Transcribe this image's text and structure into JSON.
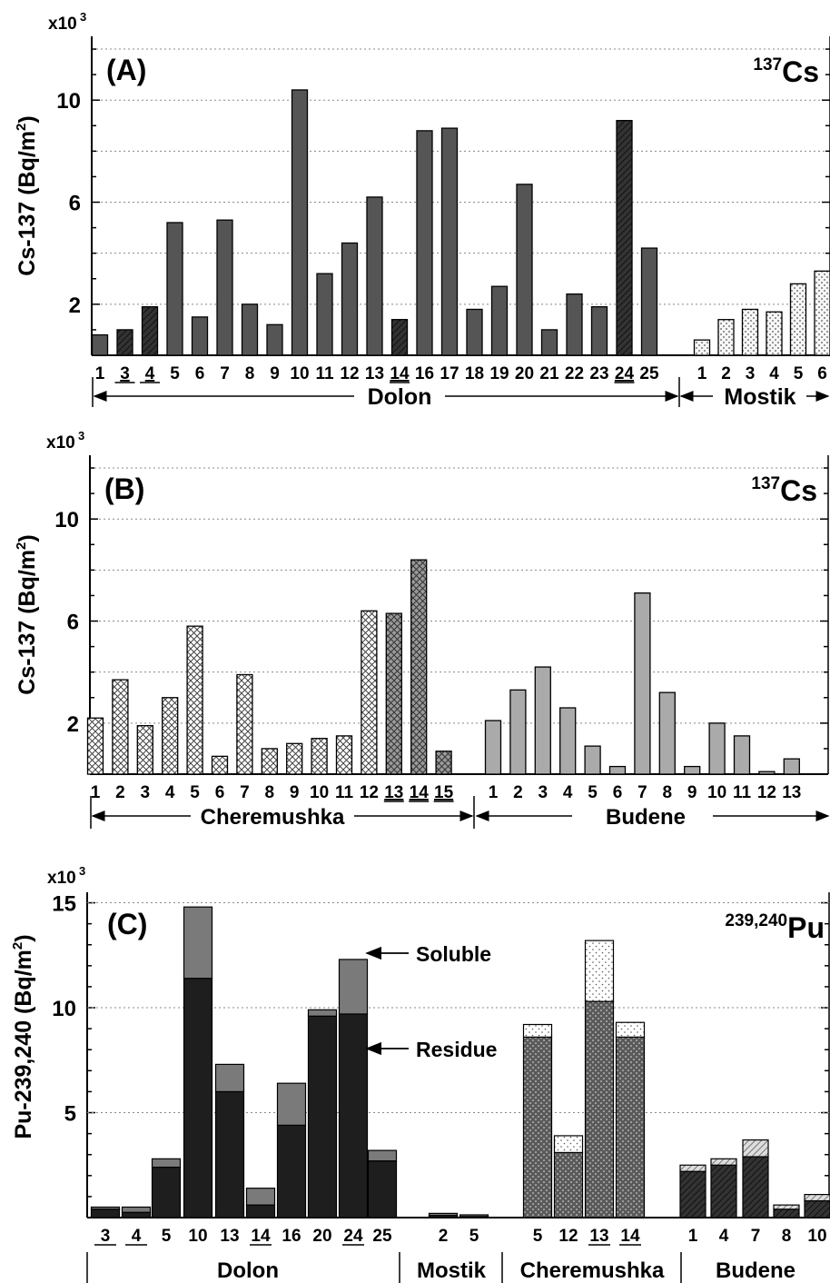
{
  "colors": {
    "dolon": "#555555",
    "dolon_hatched": "#333333",
    "mostik": "#f2f2f2",
    "cheremushka": "#ffffff",
    "cheremushka_dark": "#999999",
    "budene": "#aaaaaa",
    "residue_dark": "#1e1e1e",
    "soluble_gray": "#7a7a7a",
    "residue_dotted": "#5a5a5a"
  },
  "chart_data": [
    {
      "panel": "(A)",
      "type": "bar",
      "isotope_mass": "137",
      "isotope_symbol": "Cs",
      "ylabel": "Cs-137 (Bq/m",
      "ylabel_sup": "2",
      "ylabel_end": ")",
      "multiplier": "x10",
      "multiplier_exp": "3",
      "ylim": [
        0,
        12.5
      ],
      "yticks": [
        2,
        6,
        10
      ],
      "grid": "dotted horizontal",
      "groups": [
        {
          "name": "Dolon",
          "color_key": "dolon",
          "categories": [
            "1",
            "3",
            "4",
            "5",
            "6",
            "7",
            "8",
            "9",
            "10",
            "11",
            "12",
            "13",
            "14",
            "16",
            "17",
            "18",
            "19",
            "20",
            "21",
            "22",
            "23",
            "24",
            "25"
          ],
          "underlined": [
            "3",
            "4",
            "14",
            "24"
          ],
          "values": [
            0.8,
            1.0,
            1.9,
            5.2,
            1.5,
            5.3,
            2.0,
            1.2,
            10.4,
            3.2,
            4.4,
            6.2,
            1.4,
            8.8,
            8.9,
            1.8,
            2.7,
            6.7,
            1.0,
            2.4,
            1.9,
            9.2,
            4.2
          ]
        },
        {
          "name": "Mostik",
          "color_key": "mostik",
          "categories": [
            "1",
            "2",
            "3",
            "4",
            "5",
            "6"
          ],
          "underlined": [],
          "values": [
            0.6,
            1.4,
            1.8,
            1.7,
            2.8,
            3.3
          ]
        }
      ]
    },
    {
      "panel": "(B)",
      "type": "bar",
      "isotope_mass": "137",
      "isotope_symbol": "Cs",
      "ylabel": "Cs-137 (Bq/m",
      "ylabel_sup": "2",
      "ylabel_end": ")",
      "multiplier": "x10",
      "multiplier_exp": "3",
      "ylim": [
        0,
        12.5
      ],
      "yticks": [
        2,
        6,
        10
      ],
      "grid": "dotted horizontal",
      "groups": [
        {
          "name": "Cheremushka",
          "color_key": "cheremushka",
          "categories": [
            "1",
            "2",
            "3",
            "4",
            "5",
            "6",
            "7",
            "8",
            "9",
            "10",
            "11",
            "12",
            "13",
            "14",
            "15"
          ],
          "underlined": [
            "13",
            "14",
            "15"
          ],
          "values": [
            2.2,
            3.7,
            1.9,
            3.0,
            5.8,
            0.7,
            3.9,
            1.0,
            1.2,
            1.4,
            1.5,
            6.4,
            6.3,
            8.4,
            0.9
          ]
        },
        {
          "name": "Budene",
          "color_key": "budene",
          "categories": [
            "1",
            "2",
            "3",
            "4",
            "5",
            "6",
            "7",
            "8",
            "9",
            "10",
            "11",
            "12",
            "13"
          ],
          "underlined": [],
          "values": [
            2.1,
            3.3,
            4.2,
            2.6,
            1.1,
            0.3,
            7.1,
            3.2,
            0.3,
            2.0,
            1.5,
            0.1,
            0.6
          ]
        }
      ]
    },
    {
      "panel": "(C)",
      "type": "stacked bar",
      "isotope_mass": "239,240",
      "isotope_symbol": "Pu",
      "ylabel": "Pu-239,240 (Bq/m",
      "ylabel_sup": "2",
      "ylabel_end": ")",
      "multiplier": "x10",
      "multiplier_exp": "3",
      "ylim": [
        0,
        15.5
      ],
      "yticks": [
        5,
        10,
        15
      ],
      "annotations": [
        "Soluble",
        "Residue"
      ],
      "series": [
        "Residue",
        "Soluble"
      ],
      "groups": [
        {
          "name": "Dolon",
          "color_key": "residue_dark",
          "categories": [
            "3",
            "4",
            "5",
            "10",
            "13",
            "14",
            "16",
            "20",
            "24",
            "25"
          ],
          "underlined": [
            "3",
            "4",
            "14",
            "24"
          ],
          "residue": [
            0.4,
            0.25,
            2.4,
            11.4,
            6.0,
            0.6,
            4.4,
            9.6,
            9.7,
            2.7
          ],
          "soluble": [
            0.1,
            0.25,
            0.4,
            3.4,
            1.3,
            0.8,
            2.0,
            0.3,
            2.6,
            0.5
          ]
        },
        {
          "name": "Mostik",
          "color_key": "residue_dark",
          "categories": [
            "2",
            "5"
          ],
          "underlined": [],
          "residue": [
            0.1,
            0.05
          ],
          "soluble": [
            0.1,
            0.08
          ]
        },
        {
          "name": "Cheremushka",
          "color_key": "residue_dotted",
          "categories": [
            "5",
            "12",
            "13",
            "14"
          ],
          "underlined": [
            "13",
            "14"
          ],
          "residue": [
            8.6,
            3.1,
            10.3,
            8.6
          ],
          "soluble": [
            0.6,
            0.8,
            2.9,
            0.7
          ]
        },
        {
          "name": "Budene",
          "color_key": "residue_dark",
          "categories": [
            "1",
            "4",
            "7",
            "8",
            "10"
          ],
          "underlined": [],
          "residue": [
            2.2,
            2.5,
            2.9,
            0.4,
            0.8
          ],
          "soluble": [
            0.3,
            0.3,
            0.8,
            0.2,
            0.3
          ]
        }
      ]
    }
  ]
}
